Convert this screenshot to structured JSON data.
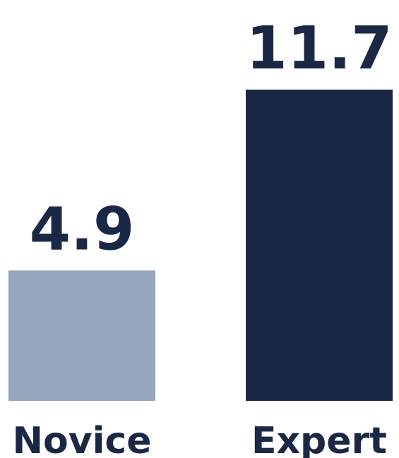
{
  "chart_data": {
    "type": "bar",
    "categories": [
      "Novice",
      "Expert"
    ],
    "values": [
      4.9,
      11.7
    ],
    "value_labels": [
      "4.9",
      "11.7"
    ],
    "colors": [
      "#97a5bd",
      "#1b2845"
    ],
    "text_color": "#1b2845",
    "ylim": [
      0,
      11.7
    ],
    "grid": false,
    "legend": "none",
    "title": "",
    "xlabel": "",
    "ylabel": ""
  }
}
